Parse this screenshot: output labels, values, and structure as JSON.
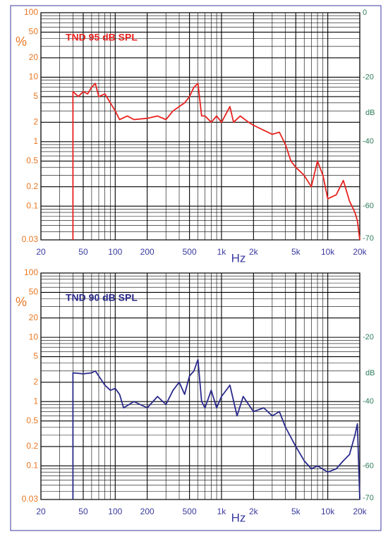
{
  "chart_data": [
    {
      "type": "line",
      "title": "TND 95 dB SPL",
      "ylabel": "%",
      "xlabel": "Hz",
      "y2label": "dB",
      "xlim": [
        20,
        20000
      ],
      "ylim": [
        0.03,
        100
      ],
      "y2lim": [
        -70.46,
        0
      ],
      "log_x": true,
      "log_y": true,
      "grid": true,
      "xticks": [
        20,
        50,
        100,
        200,
        500,
        {
          "value": 1000,
          "label": "1k"
        },
        {
          "value": 2000,
          "label": "2k"
        },
        {
          "value": 5000,
          "label": "5k"
        },
        {
          "value": 10000,
          "label": "10k"
        },
        {
          "value": 20000,
          "label": "20k"
        }
      ],
      "xminor": [
        30,
        40,
        60,
        70,
        80,
        90,
        300,
        400,
        600,
        700,
        800,
        900,
        3000,
        4000,
        6000,
        7000,
        8000,
        9000
      ],
      "yticks": [
        100,
        50,
        20,
        10,
        5,
        2,
        1,
        0.5,
        0.2,
        0.1,
        0.03
      ],
      "yminor": [
        90,
        80,
        70,
        60,
        40,
        30,
        9,
        8,
        7,
        6,
        4,
        3,
        0.9,
        0.8,
        0.7,
        0.6,
        0.4,
        0.3,
        0.09,
        0.08,
        0.07,
        0.06,
        0.05,
        0.04
      ],
      "y2ticks": [
        0,
        -20,
        -40,
        -60,
        -70
      ],
      "x": [
        40,
        40,
        45,
        50,
        55,
        60,
        65,
        70,
        80,
        90,
        100,
        110,
        130,
        150,
        200,
        250,
        300,
        350,
        400,
        450,
        500,
        550,
        600,
        650,
        700,
        800,
        900,
        1000,
        1200,
        1300,
        1500,
        1800,
        2000,
        2500,
        3000,
        3500,
        4000,
        4500,
        5000,
        6000,
        7000,
        8000,
        9000,
        10000,
        12000,
        14000,
        16000,
        18000,
        19000,
        20000
      ],
      "series": [
        {
          "color": "#e8221f",
          "values": [
            0.03,
            6,
            5,
            6,
            5.5,
            7,
            8,
            5,
            5.5,
            4,
            3,
            2.2,
            2.5,
            2.2,
            2.3,
            2.5,
            2.2,
            3,
            3.5,
            4,
            5,
            7,
            8,
            2.5,
            2.5,
            2,
            2.5,
            2,
            3.5,
            2,
            2.5,
            2,
            1.8,
            1.5,
            1.3,
            1.4,
            0.9,
            0.5,
            0.4,
            0.3,
            0.2,
            0.5,
            0.3,
            0.13,
            0.15,
            0.25,
            0.12,
            0.08,
            0.06,
            0.03
          ]
        }
      ]
    },
    {
      "type": "line",
      "title": "TND 90 dB SPL",
      "ylabel": "%",
      "xlabel": "Hz",
      "y2label": "dB",
      "xlim": [
        20,
        20000
      ],
      "ylim": [
        0.03,
        100
      ],
      "y2lim": [
        -70.46,
        0
      ],
      "log_x": true,
      "log_y": true,
      "grid": true,
      "xticks": [
        20,
        50,
        100,
        200,
        500,
        {
          "value": 1000,
          "label": "1k"
        },
        {
          "value": 2000,
          "label": "2k"
        },
        {
          "value": 5000,
          "label": "5k"
        },
        {
          "value": 10000,
          "label": "10k"
        },
        {
          "value": 20000,
          "label": "20k"
        }
      ],
      "xminor": [
        30,
        40,
        60,
        70,
        80,
        90,
        300,
        400,
        600,
        700,
        800,
        900,
        3000,
        4000,
        6000,
        7000,
        8000,
        9000
      ],
      "yticks": [
        100,
        50,
        20,
        10,
        5,
        2,
        1,
        0.5,
        0.2,
        0.1,
        0.03
      ],
      "yminor": [
        90,
        80,
        70,
        60,
        40,
        30,
        9,
        8,
        7,
        6,
        4,
        3,
        0.9,
        0.8,
        0.7,
        0.6,
        0.4,
        0.3,
        0.09,
        0.08,
        0.07,
        0.06,
        0.05,
        0.04
      ],
      "y2ticks": [
        -20,
        -40,
        -60,
        -70
      ],
      "x": [
        40,
        40,
        50,
        60,
        65,
        70,
        80,
        90,
        100,
        110,
        120,
        150,
        200,
        250,
        300,
        350,
        400,
        450,
        500,
        550,
        600,
        650,
        700,
        800,
        900,
        1000,
        1200,
        1400,
        1600,
        2000,
        2500,
        3000,
        3500,
        4000,
        5000,
        6000,
        7000,
        8000,
        10000,
        12000,
        14000,
        16000,
        18000,
        19000,
        20000
      ],
      "series": [
        {
          "color": "#2a2a8c",
          "values": [
            0.03,
            2.8,
            2.7,
            2.8,
            3,
            2.5,
            1.8,
            1.5,
            1.6,
            1.3,
            0.8,
            1,
            0.8,
            1.2,
            0.9,
            1.5,
            2,
            1.3,
            2.5,
            3,
            4.5,
            1,
            0.8,
            1.5,
            0.8,
            1.2,
            1.8,
            0.6,
            1.2,
            0.7,
            0.8,
            0.6,
            0.7,
            0.4,
            0.2,
            0.12,
            0.09,
            0.1,
            0.08,
            0.09,
            0.12,
            0.15,
            0.3,
            0.45,
            0.03
          ]
        }
      ]
    }
  ]
}
